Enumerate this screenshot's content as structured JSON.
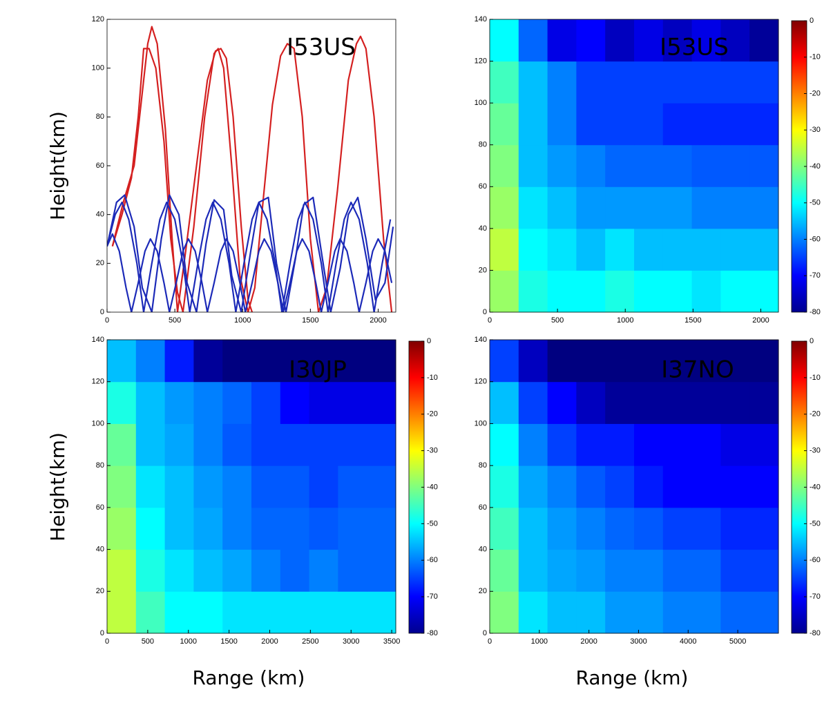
{
  "chart_data": [
    {
      "type": "rays",
      "title": "I53US",
      "ylabel": "Height(km)",
      "xlim": [
        0,
        2130
      ],
      "ylim": [
        0,
        120
      ],
      "xticks": [
        0,
        500,
        1000,
        1500,
        2000
      ],
      "yticks": [
        0,
        20,
        40,
        60,
        80,
        100,
        120
      ],
      "series": [
        {
          "color": "#d42020",
          "x": [
            40,
            120,
            200,
            260,
            300,
            330,
            370,
            430,
            480,
            520,
            580,
            660,
            740,
            800,
            840,
            880,
            930,
            990,
            1040,
            1070
          ],
          "y": [
            27,
            45,
            60,
            90,
            110,
            117,
            110,
            75,
            30,
            0,
            25,
            60,
            95,
            107,
            108,
            104,
            80,
            35,
            5,
            0
          ]
        },
        {
          "color": "#d42020",
          "x": [
            40,
            110,
            180,
            230,
            270,
            310,
            360,
            420,
            470,
            520,
            560,
            640,
            720,
            790,
            820,
            860,
            920,
            980,
            1040,
            1090,
            1150,
            1220,
            1280,
            1330,
            1380,
            1440,
            1500,
            1560,
            1620,
            1700,
            1780,
            1840,
            1870,
            1910,
            1970,
            2040,
            2100
          ],
          "y": [
            27,
            40,
            55,
            80,
            108,
            108,
            100,
            70,
            30,
            8,
            0,
            35,
            80,
            106,
            108,
            100,
            60,
            15,
            0,
            10,
            45,
            85,
            105,
            110,
            108,
            80,
            30,
            0,
            10,
            50,
            95,
            110,
            113,
            108,
            80,
            30,
            0
          ]
        },
        {
          "color": "#1c2ab8",
          "x": [
            0,
            60,
            110,
            160,
            220,
            270,
            330,
            390,
            440,
            500,
            560,
            610,
            670,
            730,
            780,
            840,
            900,
            950,
            1010,
            1070,
            1120,
            1180,
            1240,
            1290,
            1350,
            1410,
            1460,
            1520,
            1580,
            1630,
            1690,
            1750,
            1800,
            1860,
            1920,
            1970,
            2030,
            2090
          ],
          "y": [
            27,
            40,
            45,
            38,
            20,
            0,
            20,
            38,
            45,
            38,
            20,
            0,
            20,
            38,
            45,
            38,
            20,
            0,
            20,
            38,
            45,
            38,
            20,
            0,
            20,
            38,
            45,
            38,
            20,
            0,
            20,
            38,
            45,
            38,
            20,
            0,
            20,
            38
          ]
        },
        {
          "color": "#1c2ab8",
          "x": [
            0,
            40,
            90,
            140,
            180,
            230,
            280,
            320,
            370,
            420,
            460,
            510,
            560,
            600,
            650,
            700,
            740,
            790,
            840,
            880,
            930,
            980,
            1020,
            1070,
            1120,
            1160,
            1210,
            1260,
            1300,
            1350,
            1400,
            1440,
            1490,
            1540,
            1580,
            1630,
            1680,
            1720,
            1770,
            1820,
            1860,
            1910,
            1960,
            2000,
            2050,
            2100
          ],
          "y": [
            27,
            32,
            25,
            10,
            0,
            12,
            25,
            30,
            25,
            12,
            0,
            12,
            25,
            30,
            25,
            12,
            0,
            12,
            25,
            30,
            25,
            12,
            0,
            12,
            25,
            30,
            25,
            12,
            0,
            12,
            25,
            30,
            25,
            12,
            0,
            12,
            25,
            30,
            25,
            12,
            0,
            12,
            25,
            30,
            25,
            12
          ]
        },
        {
          "color": "#1c2ab8",
          "x": [
            0,
            70,
            130,
            200,
            260,
            330,
            400,
            460,
            530,
            590,
            660,
            730,
            790,
            860,
            920,
            990,
            1060,
            1120,
            1190,
            1250,
            1320,
            1390,
            1450,
            1520,
            1580,
            1650,
            1720,
            1780,
            1850,
            1910,
            1980,
            2050,
            2110
          ],
          "y": [
            27,
            45,
            48,
            35,
            10,
            0,
            30,
            48,
            40,
            12,
            0,
            28,
            46,
            42,
            15,
            0,
            25,
            45,
            47,
            20,
            0,
            22,
            44,
            47,
            25,
            0,
            18,
            40,
            47,
            30,
            5,
            12,
            35
          ]
        }
      ]
    },
    {
      "type": "heatmap",
      "title": "I53US",
      "xlim": [
        0,
        2130
      ],
      "ylim": [
        0,
        140
      ],
      "xticks": [
        0,
        500,
        1000,
        1500,
        2000
      ],
      "yticks": [
        0,
        20,
        40,
        60,
        80,
        100,
        120,
        140
      ],
      "clim": [
        -80,
        0
      ],
      "cticks": [
        0,
        -10,
        -20,
        -30,
        -40,
        -50,
        -60,
        -70,
        -80
      ],
      "z": [
        [
          -38,
          -48,
          -50,
          -50,
          -48,
          -50,
          -50,
          -52,
          -50,
          -50
        ],
        [
          -35,
          -50,
          -52,
          -55,
          -52,
          -55,
          -55,
          -55,
          -55,
          -55
        ],
        [
          -38,
          -52,
          -55,
          -58,
          -58,
          -58,
          -58,
          -60,
          -60,
          -60
        ],
        [
          -40,
          -55,
          -58,
          -60,
          -62,
          -62,
          -62,
          -63,
          -63,
          -63
        ],
        [
          -42,
          -55,
          -60,
          -65,
          -65,
          -65,
          -67,
          -67,
          -67,
          -67
        ],
        [
          -45,
          -55,
          -60,
          -65,
          -65,
          -65,
          -65,
          -65,
          -65,
          -65
        ],
        [
          -50,
          -62,
          -72,
          -70,
          -75,
          -72,
          -75,
          -72,
          -75,
          -78
        ]
      ]
    },
    {
      "type": "heatmap",
      "title": "I30JP",
      "ylabel": "Height(km)",
      "xlabel": "Range (km)",
      "xlim": [
        0,
        3550
      ],
      "ylim": [
        0,
        140
      ],
      "xticks": [
        0,
        500,
        1000,
        1500,
        2000,
        2500,
        3000,
        3500
      ],
      "yticks": [
        0,
        20,
        40,
        60,
        80,
        100,
        120,
        140
      ],
      "clim": [
        -80,
        0
      ],
      "cticks": [
        0,
        -10,
        -20,
        -30,
        -40,
        -50,
        -60,
        -70,
        -80
      ],
      "z": [
        [
          -35,
          -45,
          -50,
          -50,
          -52,
          -52,
          -52,
          -52,
          -52,
          -52
        ],
        [
          -35,
          -48,
          -52,
          -55,
          -57,
          -60,
          -62,
          -60,
          -62,
          -62
        ],
        [
          -38,
          -50,
          -55,
          -57,
          -60,
          -62,
          -62,
          -63,
          -62,
          -62
        ],
        [
          -40,
          -52,
          -55,
          -58,
          -60,
          -63,
          -63,
          -65,
          -63,
          -63
        ],
        [
          -42,
          -55,
          -57,
          -60,
          -63,
          -65,
          -65,
          -65,
          -65,
          -65
        ],
        [
          -48,
          -55,
          -58,
          -60,
          -62,
          -65,
          -70,
          -72,
          -72,
          -72
        ],
        [
          -55,
          -60,
          -68,
          -78,
          -80,
          -80,
          -80,
          -80,
          -80,
          -80
        ]
      ]
    },
    {
      "type": "heatmap",
      "title": "I37NO",
      "xlabel": "Range (km)",
      "xlim": [
        0,
        5820
      ],
      "ylim": [
        0,
        140
      ],
      "xticks": [
        0,
        1000,
        2000,
        3000,
        4000,
        5000
      ],
      "yticks": [
        0,
        20,
        40,
        60,
        80,
        100,
        120,
        140
      ],
      "clim": [
        -80,
        0
      ],
      "cticks": [
        0,
        -10,
        -20,
        -30,
        -40,
        -50,
        -60,
        -70,
        -80
      ],
      "z": [
        [
          -40,
          -52,
          -55,
          -55,
          -58,
          -58,
          -60,
          -60,
          -62,
          -62
        ],
        [
          -42,
          -55,
          -57,
          -58,
          -60,
          -60,
          -62,
          -62,
          -65,
          -65
        ],
        [
          -45,
          -55,
          -58,
          -60,
          -62,
          -63,
          -65,
          -65,
          -67,
          -67
        ],
        [
          -48,
          -57,
          -60,
          -63,
          -65,
          -68,
          -70,
          -70,
          -70,
          -70
        ],
        [
          -50,
          -60,
          -65,
          -68,
          -68,
          -70,
          -70,
          -70,
          -72,
          -72
        ],
        [
          -55,
          -65,
          -70,
          -75,
          -78,
          -78,
          -78,
          -78,
          -78,
          -78
        ],
        [
          -65,
          -75,
          -80,
          -80,
          -80,
          -80,
          -80,
          -80,
          -80,
          -80
        ]
      ]
    }
  ]
}
